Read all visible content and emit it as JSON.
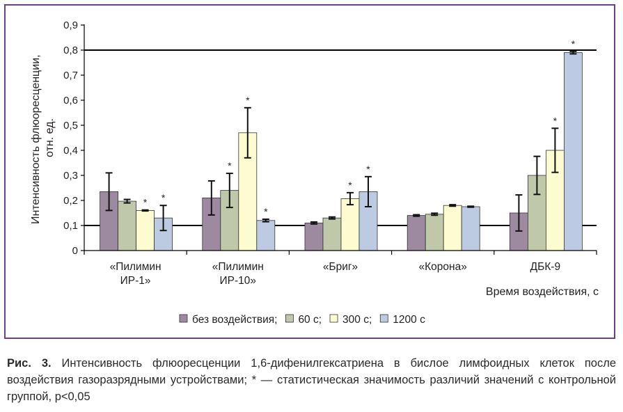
{
  "chart_data": {
    "type": "bar",
    "ylabel_line1": "Интенсивность флюоресценции,",
    "ylabel_line2": "отн. ед.",
    "xlabel": "Время воздействия, с",
    "ylim": [
      0,
      0.9
    ],
    "yticks": [
      "0",
      "0,1",
      "0,2",
      "0,3",
      "0,4",
      "0,5",
      "0,6",
      "0,7",
      "0,8",
      "0,9"
    ],
    "grid_lines_at": [
      0.1,
      0.8
    ],
    "categories": [
      [
        "«Пилимин",
        "ИР-1»"
      ],
      [
        "«Пилимин",
        "ИР-10»"
      ],
      [
        "«Бриг»"
      ],
      [
        "«Корона»"
      ],
      [
        "ДБК-9"
      ]
    ],
    "series": [
      {
        "name": "без воздействия;",
        "color": "#9e8aa0",
        "values": [
          0.235,
          0.21,
          0.11,
          0.14,
          0.15
        ],
        "errors": [
          0.075,
          0.068,
          0.004,
          0.003,
          0.072
        ],
        "significant": [
          false,
          false,
          false,
          false,
          false
        ]
      },
      {
        "name": "60 с;",
        "color": "#bfc8a8",
        "values": [
          0.197,
          0.24,
          0.13,
          0.145,
          0.3
        ],
        "errors": [
          0.007,
          0.068,
          0.004,
          0.004,
          0.076
        ],
        "significant": [
          false,
          true,
          false,
          false,
          false
        ]
      },
      {
        "name": "300 с;",
        "color": "#fdfcd0",
        "values": [
          0.16,
          0.47,
          0.207,
          0.18,
          0.4
        ],
        "errors": [
          0.002,
          0.1,
          0.024,
          0.003,
          0.088
        ],
        "significant": [
          true,
          true,
          true,
          false,
          true
        ]
      },
      {
        "name": "1200 с",
        "color": "#bccbe1",
        "values": [
          0.13,
          0.12,
          0.235,
          0.175,
          0.79
        ],
        "errors": [
          0.05,
          0.005,
          0.06,
          0.002,
          0.005
        ],
        "significant": [
          true,
          true,
          true,
          false,
          true
        ]
      }
    ],
    "significance_marker": "*",
    "legend_position": "bottom"
  },
  "caption": {
    "label": "Рис. 3.",
    "text": " Интенсивность флюоресценции 1,6-дифенилгексатриена в бислое лимфоидных клеток после воздействия газоразрядными устройствами; * — статистическая значимость различий значений с контрольной группой, p<0,05"
  }
}
